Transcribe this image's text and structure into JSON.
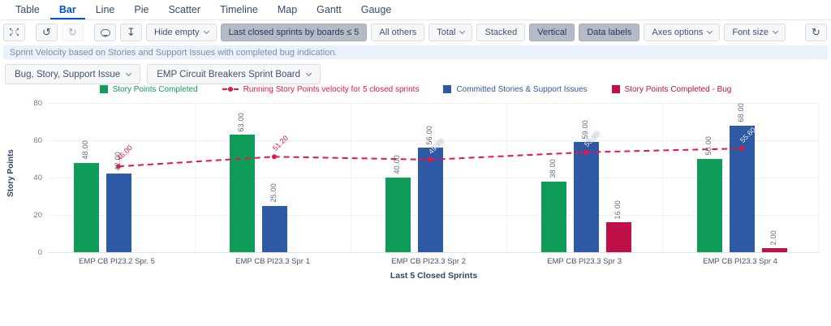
{
  "tabs": {
    "items": [
      {
        "label": "Table"
      },
      {
        "label": "Bar",
        "active": true
      },
      {
        "label": "Line"
      },
      {
        "label": "Pie"
      },
      {
        "label": "Scatter"
      },
      {
        "label": "Timeline"
      },
      {
        "label": "Map"
      },
      {
        "label": "Gantt"
      },
      {
        "label": "Gauge"
      }
    ]
  },
  "toolbar": {
    "icon_buttons": [
      {
        "name": "expand-icon"
      },
      {
        "name": "undo-icon"
      },
      {
        "name": "redo-icon",
        "disabled": true
      },
      {
        "name": "comment-icon"
      },
      {
        "name": "download-icon"
      }
    ],
    "buttons": [
      {
        "label": "Hide empty",
        "dropdown": true
      },
      {
        "label": "Last closed sprints by boards ≤ 5",
        "active": true
      },
      {
        "label": "All others"
      },
      {
        "label": "Total",
        "dropdown": true
      },
      {
        "label": "Stacked"
      },
      {
        "label": "Vertical",
        "active": true
      },
      {
        "label": "Data labels",
        "active": true
      },
      {
        "label": "Axes options",
        "dropdown": true
      },
      {
        "label": "Font size",
        "dropdown": true
      }
    ],
    "refresh_button": {
      "name": "refresh-icon"
    }
  },
  "description": "Sprint Velocity based on Stories and Support Issues with completed bug indication.",
  "filters": {
    "issue_types": "Bug, Story, Support Issue",
    "board": "EMP Circuit Breakers Sprint Board"
  },
  "chart_data": {
    "type": "bar",
    "categories": [
      "EMP CB PI23.2 Spr. 5",
      "EMP CB PI23.3 Spr 1",
      "EMP CB PI23.3 Spr 2",
      "EMP CB PI23.3 Spr 3",
      "EMP CB PI23.3 Spr 4"
    ],
    "series": [
      {
        "key": "completed",
        "name": "Story Points Completed",
        "type": "bar",
        "color": "#0f9b58",
        "values": [
          48,
          63,
          40,
          38,
          50
        ]
      },
      {
        "key": "velocity",
        "name": "Running Story Points velocity for 5 closed sprints",
        "type": "line",
        "color": "#e8173f",
        "values": [
          46,
          51.2,
          49.6,
          53.6,
          55.6
        ]
      },
      {
        "key": "committed",
        "name": "Committed Stories & Support Issues",
        "type": "bar",
        "color": "#2e59a7",
        "values": [
          42,
          25,
          56,
          59,
          68
        ]
      },
      {
        "key": "bug",
        "name": "Story Points Completed - Bug",
        "type": "bar",
        "color": "#c01048",
        "values": [
          null,
          null,
          null,
          16,
          2
        ]
      }
    ],
    "x_axis_title": "Last 5 Closed Sprints",
    "y_axis_title": "Story Points",
    "ylim": [
      0,
      80
    ],
    "yticks": [
      0,
      20,
      40,
      60,
      80
    ],
    "legend_position": "top",
    "grid": true,
    "data_labels": "two-decimal"
  }
}
